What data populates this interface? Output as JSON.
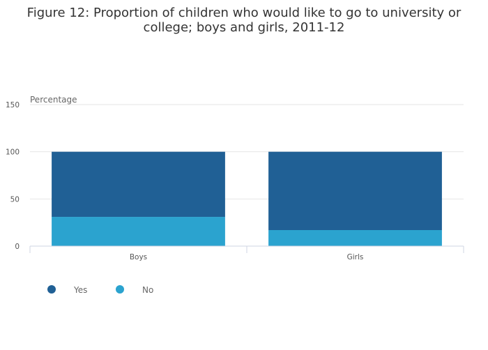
{
  "chart_data": {
    "type": "bar",
    "stacked": true,
    "title_lines": [
      "Figure 12: Proportion of children who would like to go to university or",
      "college; boys and girls, 2011-12"
    ],
    "ylabel": "Percentage",
    "xlabel": "",
    "ylim": [
      0,
      150
    ],
    "yticks": [
      0,
      50,
      100,
      150
    ],
    "categories": [
      "Boys",
      "Girls"
    ],
    "series": [
      {
        "name": "No",
        "values": [
          31,
          17
        ],
        "color": "#2ba3cf"
      },
      {
        "name": "Yes",
        "values": [
          69,
          83
        ],
        "color": "#206095"
      }
    ],
    "legend": [
      {
        "name": "Yes",
        "color": "#206095"
      },
      {
        "name": "No",
        "color": "#2ba3cf"
      }
    ],
    "legend_position": "bottom-left",
    "grid": true
  }
}
